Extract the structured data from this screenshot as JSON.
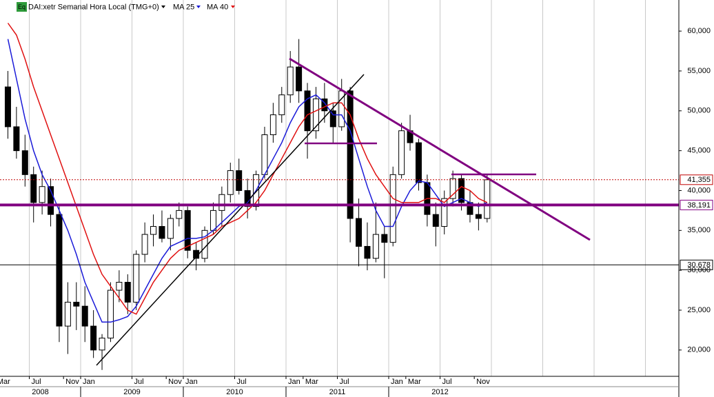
{
  "chart_data": {
    "type": "candlestick",
    "badge": "Eq",
    "title": "DAI:xetr Semanal Hora Local (TMG+0)",
    "x": [
      "2008-04",
      "2008-05",
      "2008-06",
      "2008-07",
      "2008-08",
      "2008-09",
      "2008-10",
      "2008-11",
      "2008-12",
      "2009-01",
      "2009-02",
      "2009-03",
      "2009-04",
      "2009-05",
      "2009-06",
      "2009-07",
      "2009-08",
      "2009-09",
      "2009-10",
      "2009-11",
      "2009-12",
      "2010-01",
      "2010-02",
      "2010-03",
      "2010-04",
      "2010-05",
      "2010-06",
      "2010-07",
      "2010-08",
      "2010-09",
      "2010-10",
      "2010-11",
      "2010-12",
      "2011-01",
      "2011-02",
      "2011-03",
      "2011-04",
      "2011-05",
      "2011-06",
      "2011-07",
      "2011-08",
      "2011-09",
      "2011-10",
      "2011-11",
      "2011-12",
      "2012-01",
      "2012-02",
      "2012-03",
      "2012-04",
      "2012-05",
      "2012-06",
      "2012-07",
      "2012-08",
      "2012-09",
      "2012-10",
      "2012-11",
      "2012-12"
    ],
    "open": [
      53000,
      48000,
      45000,
      42000,
      38500,
      40500,
      37000,
      23000,
      26000,
      25500,
      23000,
      20000,
      21500,
      27500,
      28500,
      26000,
      32000,
      34500,
      35500,
      34000,
      36500,
      37500,
      32500,
      31500,
      35000,
      37500,
      39500,
      42500,
      40000,
      38000,
      42000,
      47000,
      49500,
      52000,
      55500,
      52500,
      47500,
      51500,
      50000,
      48000,
      52500,
      36500,
      33000,
      31500,
      34500,
      33500,
      42000,
      47500,
      46000,
      41000,
      37000,
      35500,
      39000,
      41500,
      38500,
      37000,
      36500
    ],
    "high": [
      55000,
      50500,
      47000,
      43000,
      42500,
      41500,
      38000,
      28500,
      28500,
      28000,
      25000,
      22000,
      28500,
      30000,
      29500,
      32500,
      36000,
      37000,
      37500,
      37000,
      38500,
      38000,
      33500,
      35500,
      38500,
      40500,
      43500,
      44000,
      41500,
      42500,
      48000,
      51000,
      53000,
      57500,
      59000,
      53500,
      53000,
      53500,
      51000,
      54000,
      53000,
      39000,
      36000,
      38500,
      35500,
      43000,
      48500,
      49500,
      46500,
      42000,
      38500,
      40000,
      42500,
      42000,
      40000,
      38500,
      42000
    ],
    "low": [
      46500,
      44000,
      40500,
      36000,
      37000,
      35500,
      21000,
      19500,
      22500,
      21000,
      19000,
      17500,
      21000,
      26000,
      24500,
      25000,
      31000,
      33000,
      33500,
      32500,
      35500,
      31500,
      30000,
      31000,
      34500,
      35500,
      38500,
      39500,
      36500,
      37500,
      41500,
      46000,
      48500,
      51000,
      51000,
      44000,
      46500,
      48500,
      46000,
      47500,
      33500,
      30500,
      30000,
      31000,
      29000,
      33000,
      41500,
      45000,
      40000,
      35500,
      33000,
      34500,
      38000,
      37500,
      36000,
      35000,
      36000
    ],
    "close": [
      48000,
      45000,
      42000,
      38500,
      40500,
      37000,
      23000,
      26000,
      25500,
      23000,
      20000,
      21500,
      27500,
      28500,
      26000,
      32000,
      34500,
      35500,
      34000,
      36500,
      37500,
      32500,
      31500,
      35000,
      37500,
      39500,
      42500,
      40000,
      38000,
      42000,
      47000,
      49500,
      52000,
      55500,
      52500,
      47500,
      51500,
      50000,
      48000,
      52500,
      36500,
      33000,
      31500,
      34500,
      33500,
      42000,
      47500,
      46000,
      41000,
      37000,
      35500,
      39000,
      41500,
      38500,
      37000,
      36500,
      41355
    ],
    "up_fill": "#ffffff",
    "down_fill": "#000000",
    "series": [
      {
        "name": "MA 25",
        "color": "#1a1ad8",
        "values": [
          59000,
          54000,
          49000,
          45000,
          42000,
          40000,
          37500,
          35000,
          32000,
          28500,
          26000,
          23500,
          23500,
          23800,
          24200,
          25500,
          27500,
          29500,
          31500,
          33000,
          33500,
          34000,
          34000,
          34200,
          35000,
          36000,
          37000,
          38000,
          38500,
          40000,
          42000,
          44000,
          46000,
          48500,
          50500,
          51500,
          52000,
          51000,
          49500,
          49500,
          47500,
          44000,
          40500,
          37500,
          35500,
          35500,
          38000,
          40000,
          41200,
          41000,
          39500,
          38000,
          38500,
          39000,
          38500,
          38000,
          38500
        ]
      },
      {
        "name": "MA 40",
        "color": "#e01010",
        "values": [
          61000,
          59500,
          56500,
          53000,
          50000,
          47000,
          44000,
          41000,
          38000,
          35000,
          32000,
          29500,
          28000,
          26500,
          25000,
          24500,
          26500,
          28500,
          30000,
          31500,
          32500,
          33000,
          33500,
          34000,
          34500,
          35500,
          36000,
          36500,
          37500,
          38500,
          40000,
          42000,
          44000,
          46000,
          48000,
          49500,
          50000,
          50500,
          51000,
          51000,
          49500,
          46500,
          44000,
          42000,
          40500,
          39000,
          38500,
          38500,
          38500,
          39000,
          39000,
          38500,
          39500,
          40500,
          40000,
          39000,
          38500
        ]
      }
    ],
    "ylim": [
      16700,
      63900
    ],
    "yticks": [
      {
        "value": 20000,
        "label": "20,000"
      },
      {
        "value": 25000,
        "label": "25,000"
      },
      {
        "value": 30000,
        "label": "30,000"
      },
      {
        "value": 35000,
        "label": "35,000"
      },
      {
        "value": 40000,
        "label": "40,000"
      },
      {
        "value": 45000,
        "label": "45,000"
      },
      {
        "value": 50000,
        "label": "50,000"
      },
      {
        "value": 55000,
        "label": "55,000"
      },
      {
        "value": 60000,
        "label": "60,000"
      }
    ],
    "xticks": [
      {
        "value": "2008-03",
        "label": "Mar"
      },
      {
        "value": "2008-07",
        "label": "Jul"
      },
      {
        "value": "2008-11",
        "label": "Nov"
      },
      {
        "value": "2009-01",
        "label": "Jan"
      },
      {
        "value": "2009-07",
        "label": "Jul"
      },
      {
        "value": "2009-11",
        "label": "Nov"
      },
      {
        "value": "2010-01",
        "label": "Jan"
      },
      {
        "value": "2010-07",
        "label": "Jul"
      },
      {
        "value": "2011-01",
        "label": "Jan"
      },
      {
        "value": "2011-03",
        "label": "Mar"
      },
      {
        "value": "2011-07",
        "label": "Jul"
      },
      {
        "value": "2012-01",
        "label": "Jan"
      },
      {
        "value": "2012-03",
        "label": "Mar"
      },
      {
        "value": "2012-07",
        "label": "Jul"
      },
      {
        "value": "2012-11",
        "label": "Nov"
      }
    ],
    "years": [
      2008,
      2009,
      2010,
      2011,
      2012
    ],
    "levels": [
      {
        "value": 41355,
        "label": "41,355",
        "color": "#c00000",
        "label_color": "#000000",
        "style": "dotted",
        "width": 1
      },
      {
        "value": 38191,
        "label": "38,191",
        "color": "#800080",
        "label_color": "#c00000",
        "style": "solid",
        "width": 4
      },
      {
        "value": 30678,
        "label": "30,678",
        "color": "#000000",
        "label_color": "#c00000",
        "style": "solid",
        "width": 1
      }
    ]
  }
}
